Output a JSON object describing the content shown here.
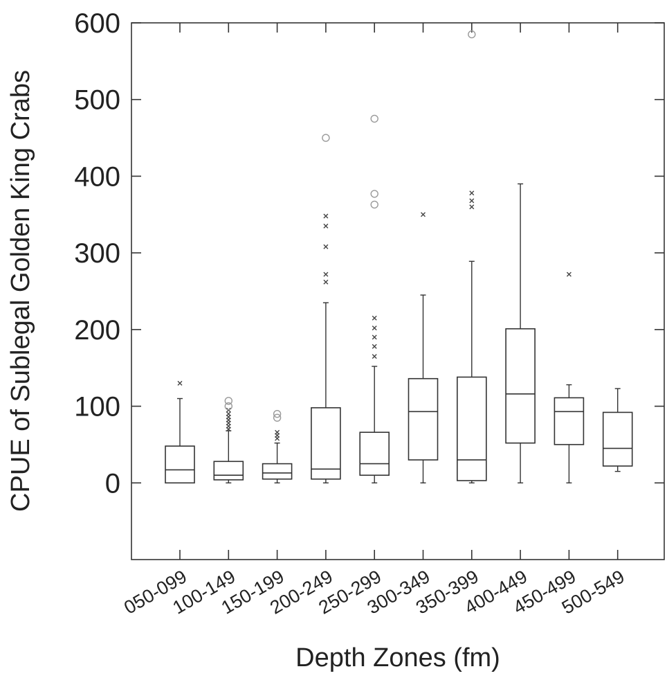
{
  "chart_data": {
    "type": "box",
    "xlabel": "Depth Zones (fm)",
    "ylabel": "CPUE of Sublegal Golden King Crabs",
    "ylim": [
      -100,
      600
    ],
    "yticks": [
      0,
      100,
      200,
      300,
      400,
      500,
      600
    ],
    "yticklabels": [
      "0",
      "100",
      "200",
      "300",
      "400",
      "500",
      "600"
    ],
    "grid": false,
    "categories": [
      "050-099",
      "100-149",
      "150-199",
      "200-249",
      "250-299",
      "300-349",
      "350-399",
      "400-449",
      "450-499",
      "500-549"
    ],
    "boxes": [
      {
        "category": "050-099",
        "min": 0,
        "q1": 0,
        "median": 17,
        "q3": 48,
        "max": 110,
        "outliers_x": [
          130
        ],
        "outliers_o": []
      },
      {
        "category": "100-149",
        "min": 0,
        "q1": 4,
        "median": 10,
        "q3": 28,
        "max": 68,
        "outliers_x": [
          70,
          74,
          78,
          82,
          86,
          90,
          95
        ],
        "outliers_o": [
          100,
          107
        ]
      },
      {
        "category": "150-199",
        "min": 0,
        "q1": 5,
        "median": 13,
        "q3": 25,
        "max": 52,
        "outliers_x": [
          58,
          62,
          66
        ],
        "outliers_o": [
          85,
          90
        ]
      },
      {
        "category": "200-249",
        "min": 0,
        "q1": 5,
        "median": 18,
        "q3": 98,
        "max": 235,
        "outliers_x": [
          262,
          272,
          308,
          335,
          348
        ],
        "outliers_o": [
          450
        ]
      },
      {
        "category": "250-299",
        "min": 0,
        "q1": 10,
        "median": 25,
        "q3": 66,
        "max": 152,
        "outliers_x": [
          165,
          178,
          190,
          202,
          215
        ],
        "outliers_o": [
          363,
          377,
          475
        ]
      },
      {
        "category": "300-349",
        "min": 0,
        "q1": 30,
        "median": 93,
        "q3": 136,
        "max": 245,
        "outliers_x": [
          350
        ],
        "outliers_o": []
      },
      {
        "category": "350-399",
        "min": 0,
        "q1": 3,
        "median": 30,
        "q3": 138,
        "max": 289,
        "outliers_x": [
          360,
          368,
          378
        ],
        "outliers_o": [
          585
        ]
      },
      {
        "category": "400-449",
        "min": 0,
        "q1": 52,
        "median": 116,
        "q3": 201,
        "max": 390,
        "outliers_x": [],
        "outliers_o": []
      },
      {
        "category": "450-499",
        "min": 0,
        "q1": 50,
        "median": 93,
        "q3": 111,
        "max": 128,
        "outliers_x": [
          272
        ],
        "outliers_o": []
      },
      {
        "category": "500-549",
        "min": 15,
        "q1": 22,
        "median": 45,
        "q3": 92,
        "max": 123,
        "outliers_x": [],
        "outliers_o": []
      }
    ]
  }
}
